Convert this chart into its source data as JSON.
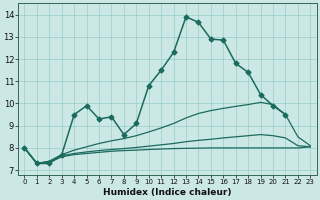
{
  "xlabel": "Humidex (Indice chaleur)",
  "bg_color": "#cce8e4",
  "grid_color": "#99cccc",
  "line_color": "#1a6b5e",
  "xlim": [
    -0.5,
    23.5
  ],
  "ylim": [
    6.8,
    14.5
  ],
  "yticks": [
    7,
    8,
    9,
    10,
    11,
    12,
    13,
    14
  ],
  "xticks": [
    0,
    1,
    2,
    3,
    4,
    5,
    6,
    7,
    8,
    9,
    10,
    11,
    12,
    13,
    14,
    15,
    16,
    17,
    18,
    19,
    20,
    21,
    22,
    23
  ],
  "series": [
    {
      "x": [
        0,
        1,
        2,
        3,
        4,
        5,
        6,
        7,
        8,
        9,
        10,
        11,
        12,
        13,
        14,
        15,
        16,
        17,
        18,
        19,
        20,
        21
      ],
      "y": [
        8.0,
        7.3,
        7.3,
        7.7,
        9.5,
        9.9,
        9.3,
        9.4,
        8.6,
        9.1,
        10.8,
        11.5,
        12.3,
        13.9,
        13.65,
        12.9,
        12.85,
        11.8,
        11.4,
        10.4,
        9.9,
        9.5
      ],
      "marker": "D",
      "markersize": 2.5,
      "linewidth": 1.1,
      "has_marker": true
    },
    {
      "x": [
        0,
        1,
        2,
        3,
        4,
        5,
        6,
        7,
        8,
        9,
        10,
        11,
        12,
        13,
        14,
        15,
        16,
        17,
        18,
        19,
        20,
        21,
        22,
        23
      ],
      "y": [
        8.0,
        7.3,
        7.35,
        7.6,
        7.7,
        7.75,
        7.8,
        7.85,
        7.88,
        7.9,
        7.93,
        7.95,
        7.97,
        7.98,
        7.99,
        8.0,
        8.0,
        8.0,
        8.0,
        8.0,
        8.0,
        8.0,
        8.0,
        8.05
      ],
      "marker": null,
      "markersize": 0,
      "linewidth": 0.9,
      "has_marker": false
    },
    {
      "x": [
        0,
        1,
        2,
        3,
        4,
        5,
        6,
        7,
        8,
        9,
        10,
        11,
        12,
        13,
        14,
        15,
        16,
        17,
        18,
        19,
        20,
        21,
        22,
        23
      ],
      "y": [
        8.0,
        7.3,
        7.4,
        7.65,
        7.75,
        7.82,
        7.88,
        7.93,
        7.97,
        8.02,
        8.08,
        8.14,
        8.2,
        8.28,
        8.34,
        8.39,
        8.45,
        8.5,
        8.55,
        8.6,
        8.55,
        8.45,
        8.1,
        8.05
      ],
      "marker": null,
      "markersize": 0,
      "linewidth": 0.9,
      "has_marker": false
    },
    {
      "x": [
        0,
        1,
        2,
        3,
        4,
        5,
        6,
        7,
        8,
        9,
        10,
        11,
        12,
        13,
        14,
        15,
        16,
        17,
        18,
        19,
        20,
        21,
        22,
        23
      ],
      "y": [
        8.0,
        7.3,
        7.4,
        7.7,
        7.9,
        8.05,
        8.2,
        8.32,
        8.42,
        8.55,
        8.72,
        8.9,
        9.1,
        9.35,
        9.55,
        9.68,
        9.78,
        9.87,
        9.95,
        10.05,
        9.95,
        9.5,
        8.5,
        8.1
      ],
      "marker": null,
      "markersize": 0,
      "linewidth": 0.9,
      "has_marker": false
    }
  ]
}
